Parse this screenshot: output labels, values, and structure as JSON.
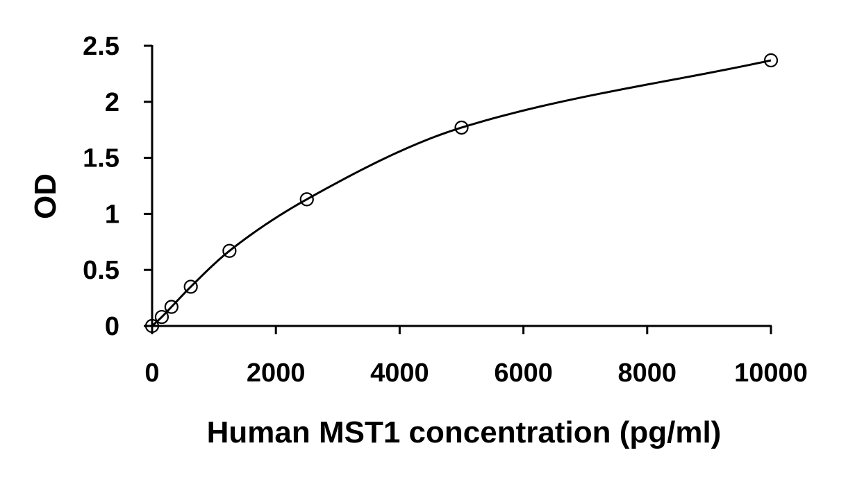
{
  "chart_data": {
    "type": "scatter",
    "title": "",
    "xlabel": "Human MST1 concentration (pg/ml)",
    "ylabel": "OD",
    "xlim": [
      0,
      10000
    ],
    "ylim": [
      0,
      2.5
    ],
    "x_ticks": [
      0,
      2000,
      4000,
      6000,
      8000,
      10000
    ],
    "y_ticks": [
      0,
      0.5,
      1,
      1.5,
      2,
      2.5
    ],
    "x_tick_labels": [
      "0",
      "2000",
      "4000",
      "6000",
      "8000",
      "10000"
    ],
    "y_tick_labels": [
      "0",
      "0.5",
      "1",
      "1.5",
      "2",
      "2.5"
    ],
    "grid": false,
    "legend": "none",
    "series": [
      {
        "marker": "open-circle",
        "line": "smooth-fit",
        "x": [
          0,
          156.25,
          312.5,
          625,
          1250,
          2500,
          5000,
          10000
        ],
        "y": [
          0.0,
          0.08,
          0.17,
          0.35,
          0.67,
          1.13,
          1.77,
          2.37
        ]
      }
    ]
  }
}
